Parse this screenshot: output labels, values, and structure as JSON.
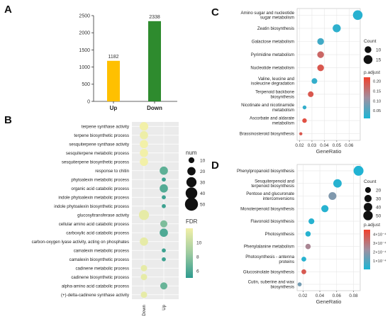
{
  "panels": {
    "A": {
      "label": "A",
      "chart_data": {
        "type": "bar",
        "categories": [
          "Up",
          "Down"
        ],
        "values": [
          1182,
          2338
        ],
        "data_labels": [
          "1182",
          "2338"
        ],
        "colors": [
          "#FFC000",
          "#2E8B2E"
        ],
        "yticks": [
          "0",
          "500",
          "1000",
          "1500",
          "2000",
          "2500"
        ],
        "ylim": [
          0,
          2500
        ]
      }
    },
    "B": {
      "label": "B",
      "chart_data": {
        "type": "scatter",
        "x_categories": [
          "Down",
          "Up"
        ],
        "y_categories": [
          "terpene synthase activity",
          "terpene biosynthetic process",
          "sesquiterpene synthase activity",
          "sesquiterpene metabolic process",
          "sesquiterpene biosynthetic process",
          "response to chitin",
          "phytoalexin metabolic process",
          "organic acid catabolic process",
          "indole phytoalexin metabolic process",
          "indole phytoalexin biosynthetic process",
          "glucosyltransferase activity",
          "cellular amino acid catabolic process",
          "carboxylic acid catabolic process",
          "carbon-oxygen lyase activity, acting on phosphates",
          "camalexin metabolic process",
          "camalexin biosynthetic process",
          "cadinene metabolic process",
          "cadinene biosynthetic process",
          "alpha-amino acid catabolic process",
          "(+)-delta-cadinene synthase activity"
        ],
        "points": [
          {
            "x": "Down",
            "y": "terpene synthase activity",
            "num": 22,
            "fdr": 12
          },
          {
            "x": "Down",
            "y": "terpene biosynthetic process",
            "num": 20,
            "fdr": 11.8
          },
          {
            "x": "Down",
            "y": "sesquiterpene synthase activity",
            "num": 20,
            "fdr": 12
          },
          {
            "x": "Down",
            "y": "sesquiterpene metabolic process",
            "num": 20,
            "fdr": 12
          },
          {
            "x": "Down",
            "y": "sesquiterpene biosynthetic process",
            "num": 20,
            "fdr": 12
          },
          {
            "x": "Up",
            "y": "response to chitin",
            "num": 20,
            "fdr": 6.5
          },
          {
            "x": "Up",
            "y": "phytoalexin metabolic process",
            "num": 5,
            "fdr": 5.5
          },
          {
            "x": "Up",
            "y": "organic acid catabolic process",
            "num": 20,
            "fdr": 6.2
          },
          {
            "x": "Up",
            "y": "indole phytoalexin metabolic process",
            "num": 5,
            "fdr": 5.5
          },
          {
            "x": "Up",
            "y": "indole phytoalexin biosynthetic process",
            "num": 5,
            "fdr": 5.5
          },
          {
            "x": "Down",
            "y": "glucosyltransferase activity",
            "num": 30,
            "fdr": 11.5
          },
          {
            "x": "Up",
            "y": "cellular amino acid catabolic process",
            "num": 15,
            "fdr": 7.5
          },
          {
            "x": "Up",
            "y": "carboxylic acid catabolic process",
            "num": 20,
            "fdr": 6
          },
          {
            "x": "Down",
            "y": "carbon-oxygen lyase activity, acting on phosphates",
            "num": 20,
            "fdr": 11.5
          },
          {
            "x": "Up",
            "y": "camalexin metabolic process",
            "num": 5,
            "fdr": 5.5
          },
          {
            "x": "Up",
            "y": "camalexin biosynthetic process",
            "num": 5,
            "fdr": 5.5
          },
          {
            "x": "Down",
            "y": "cadinene metabolic process",
            "num": 12,
            "fdr": 11.5
          },
          {
            "x": "Down",
            "y": "cadinene biosynthetic process",
            "num": 12,
            "fdr": 11.5
          },
          {
            "x": "Up",
            "y": "alpha-amino acid catabolic process",
            "num": 15,
            "fdr": 6.8
          },
          {
            "x": "Down",
            "y": "(+)-delta-cadinene synthase activity",
            "num": 12,
            "fdr": 11.5
          }
        ],
        "size_legend_title": "num",
        "size_legend": [
          {
            "label": "10",
            "value": 10
          },
          {
            "label": "20",
            "value": 20
          },
          {
            "label": "30",
            "value": 30
          },
          {
            "label": "40",
            "value": 40
          },
          {
            "label": "50",
            "value": 50
          }
        ],
        "color_legend_title": "FDR",
        "color_ticks": [
          {
            "label": "10",
            "value": 10
          },
          {
            "label": "8",
            "value": 8
          },
          {
            "label": "6",
            "value": 6
          }
        ],
        "fdr_range": [
          5,
          12
        ],
        "colors": {
          "low": "#2E9B8F",
          "mid": "#9ECBA0",
          "high": "#F2F0A8"
        }
      }
    },
    "C": {
      "label": "C",
      "chart_data": {
        "type": "scatter",
        "xlabel": "GeneRatio",
        "xticks": [
          "0.02",
          "0.03",
          "0.04",
          "0.05",
          "0.06"
        ],
        "xlim": [
          0.018,
          0.069
        ],
        "categories": [
          "Amino sugar and nucleotide\nsugar metabolism",
          "Zeatin biosynthesis",
          "Galactose metabolism",
          "Pyrimidine metabolism",
          "Nucleotide metabolism",
          "Valine, leucine and\nisoleucine degradation",
          "Terpenoid backbone\nbiosynthesis",
          "Nicotinate and nicotinamide\nmetabolism",
          "Ascorbate and aldarate\nmetabolism",
          "Brassinosteroid biosynthesis"
        ],
        "points": [
          {
            "x": 0.067,
            "count": 17,
            "p_adjust": 0.02
          },
          {
            "x": 0.05,
            "count": 13,
            "p_adjust": 0.025
          },
          {
            "x": 0.037,
            "count": 10,
            "p_adjust": 0.04
          },
          {
            "x": 0.037,
            "count": 10,
            "p_adjust": 0.17
          },
          {
            "x": 0.037,
            "count": 10,
            "p_adjust": 0.19
          },
          {
            "x": 0.032,
            "count": 8,
            "p_adjust": 0.03
          },
          {
            "x": 0.029,
            "count": 8,
            "p_adjust": 0.19
          },
          {
            "x": 0.024,
            "count": 5,
            "p_adjust": 0.03
          },
          {
            "x": 0.024,
            "count": 6,
            "p_adjust": 0.2
          },
          {
            "x": 0.021,
            "count": 4,
            "p_adjust": 0.19
          }
        ],
        "size_legend_title": "Count",
        "size_legend": [
          {
            "label": "10",
            "value": 10
          },
          {
            "label": "15",
            "value": 15
          }
        ],
        "color_legend_title": "p.adjust",
        "color_ticks": [
          {
            "label": "0.20",
            "value": 0.2
          },
          {
            "label": "0.15",
            "value": 0.15
          },
          {
            "label": "0.10",
            "value": 0.1
          },
          {
            "label": "0.05",
            "value": 0.05
          }
        ],
        "p_range": [
          0.01,
          0.22
        ],
        "size_range": [
          4,
          17
        ],
        "colors": {
          "low": "#1BB5D5",
          "high": "#F0412D"
        }
      }
    },
    "D": {
      "label": "D",
      "chart_data": {
        "type": "scatter",
        "xlabel": "GeneRatio",
        "xticks": [
          "0.02",
          "0.04",
          "0.06",
          "0.08"
        ],
        "xlim": [
          0.013,
          0.088
        ],
        "categories": [
          "Phenylpropanoid biosynthesis",
          "Sesquiterpenoid and\nterpenoid biosynthesis",
          "Pentose and glucuronate\ninterconversions",
          "Monoterpenoid biosynthesis",
          "Flavonoid biosynthesis",
          "Photosynthesis",
          "Phenylalanine metabolism",
          "Photosynthesis - antenna\nproteins",
          "Glucosinolate biosynthesis",
          "Cutin, suberine and wax\nbiosynthesis"
        ],
        "points": [
          {
            "x": 0.086,
            "count": 55,
            "p_adjust": 1e-05
          },
          {
            "x": 0.061,
            "count": 40,
            "p_adjust": 2e-05
          },
          {
            "x": 0.055,
            "count": 35,
            "p_adjust": 0.00017
          },
          {
            "x": 0.046,
            "count": 30,
            "p_adjust": 2e-05
          },
          {
            "x": 0.03,
            "count": 20,
            "p_adjust": 2e-05
          },
          {
            "x": 0.026,
            "count": 17,
            "p_adjust": 2e-05
          },
          {
            "x": 0.026,
            "count": 17,
            "p_adjust": 0.00025
          },
          {
            "x": 0.021,
            "count": 14,
            "p_adjust": 2e-05
          },
          {
            "x": 0.021,
            "count": 14,
            "p_adjust": 0.00038
          },
          {
            "x": 0.016,
            "count": 10,
            "p_adjust": 0.00015
          }
        ],
        "size_legend_title": "Count",
        "size_legend": [
          {
            "label": "20",
            "value": 20
          },
          {
            "label": "30",
            "value": 30
          },
          {
            "label": "40",
            "value": 40
          },
          {
            "label": "50",
            "value": 50
          }
        ],
        "color_legend_title": "p.adjust",
        "color_ticks": [
          {
            "label": "4×10⁻⁴",
            "value": 0.0004
          },
          {
            "label": "3×10⁻⁴",
            "value": 0.0003
          },
          {
            "label": "2×10⁻⁴",
            "value": 0.0002
          },
          {
            "label": "1×10⁻⁴",
            "value": 0.0001
          }
        ],
        "p_range": [
          0.0,
          0.00045
        ],
        "size_range": [
          8,
          58
        ],
        "colors": {
          "low": "#1BB5D5",
          "high": "#F0412D"
        }
      }
    }
  }
}
